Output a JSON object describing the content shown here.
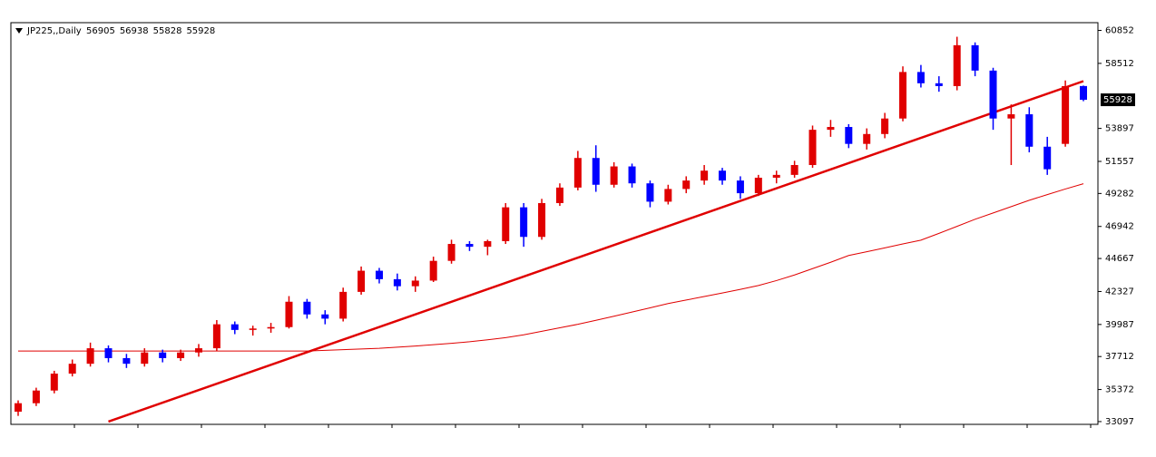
{
  "chart_data": {
    "type": "candlestick",
    "symbol": "JP225,,Daily",
    "bull_color": "#e00000",
    "bear_color": "#0000ff",
    "ylim": [
      32900,
      61400
    ],
    "yticks": [
      60852,
      58512,
      53897,
      51557,
      49282,
      46942,
      44667,
      42327,
      39987,
      37712,
      35372,
      33097
    ],
    "candles": [
      [
        33800,
        34600,
        33500,
        34400
      ],
      [
        34400,
        35500,
        34200,
        35300
      ],
      [
        35300,
        36700,
        35100,
        36500
      ],
      [
        36500,
        37500,
        36300,
        37200
      ],
      [
        37200,
        38700,
        37000,
        38300
      ],
      [
        38300,
        38500,
        37300,
        37600
      ],
      [
        37600,
        37900,
        36900,
        37200
      ],
      [
        37200,
        38300,
        37000,
        38000
      ],
      [
        38000,
        38200,
        37300,
        37600
      ],
      [
        37600,
        38200,
        37400,
        38000
      ],
      [
        38000,
        38600,
        37700,
        38300
      ],
      [
        38300,
        40300,
        38100,
        40000
      ],
      [
        40000,
        40200,
        39300,
        39600
      ],
      [
        39600,
        39900,
        39200,
        39700
      ],
      [
        39700,
        40100,
        39400,
        39800
      ],
      [
        39800,
        42000,
        39700,
        41600
      ],
      [
        41600,
        41800,
        40400,
        40700
      ],
      [
        40700,
        41000,
        40000,
        40400
      ],
      [
        40400,
        42600,
        40200,
        42300
      ],
      [
        42300,
        44100,
        42100,
        43800
      ],
      [
        43800,
        44000,
        42900,
        43200
      ],
      [
        43200,
        43600,
        42400,
        42700
      ],
      [
        42700,
        43400,
        42300,
        43100
      ],
      [
        43100,
        44800,
        43000,
        44500
      ],
      [
        44500,
        46000,
        44300,
        45700
      ],
      [
        45700,
        45900,
        45200,
        45500
      ],
      [
        45500,
        46000,
        44900,
        45900
      ],
      [
        45900,
        48600,
        45700,
        48300
      ],
      [
        48300,
        48600,
        45500,
        46200
      ],
      [
        46200,
        48900,
        46000,
        48600
      ],
      [
        48600,
        50000,
        48400,
        49700
      ],
      [
        49700,
        52300,
        49500,
        51800
      ],
      [
        51800,
        52700,
        49400,
        49900
      ],
      [
        49900,
        51500,
        49700,
        51200
      ],
      [
        51200,
        51400,
        49700,
        50000
      ],
      [
        50000,
        50200,
        48300,
        48700
      ],
      [
        48700,
        49900,
        48500,
        49600
      ],
      [
        49600,
        50500,
        49300,
        50200
      ],
      [
        50200,
        51300,
        49900,
        50900
      ],
      [
        50900,
        51100,
        49900,
        50200
      ],
      [
        50200,
        50500,
        48900,
        49300
      ],
      [
        49300,
        50600,
        49100,
        50400
      ],
      [
        50400,
        50900,
        50000,
        50600
      ],
      [
        50600,
        51600,
        50400,
        51300
      ],
      [
        51300,
        54100,
        51100,
        53800
      ],
      [
        53800,
        54500,
        53300,
        54000
      ],
      [
        54000,
        54200,
        52500,
        52800
      ],
      [
        52800,
        53900,
        52400,
        53500
      ],
      [
        53500,
        55000,
        53200,
        54600
      ],
      [
        54600,
        58300,
        54400,
        57900
      ],
      [
        57900,
        58400,
        56800,
        57100
      ],
      [
        57100,
        57600,
        56500,
        56900
      ],
      [
        56900,
        60400,
        56600,
        59800
      ],
      [
        59800,
        60000,
        57600,
        58000
      ],
      [
        58000,
        58200,
        53800,
        54600
      ],
      [
        54600,
        55600,
        51300,
        54900
      ],
      [
        54900,
        55400,
        52200,
        52600
      ],
      [
        52600,
        53300,
        50600,
        51000
      ],
      [
        52800,
        57300,
        52600,
        56900
      ],
      [
        56905,
        56938,
        55828,
        55928
      ]
    ],
    "ma": {
      "color": "#e00000",
      "values": [
        38100,
        38100,
        38100,
        38100,
        38100,
        38100,
        38100,
        38100,
        38100,
        38100,
        38100,
        38100,
        38100,
        38100,
        38100,
        38100,
        38100,
        38150,
        38200,
        38250,
        38300,
        38380,
        38460,
        38550,
        38650,
        38760,
        38900,
        39050,
        39250,
        39500,
        39750,
        40000,
        40280,
        40570,
        40870,
        41170,
        41470,
        41720,
        41970,
        42220,
        42480,
        42750,
        43100,
        43500,
        43950,
        44400,
        44880,
        45150,
        45420,
        45700,
        45970,
        46450,
        46950,
        47450,
        47900,
        48350,
        48800,
        49200,
        49600,
        49970
      ]
    },
    "trendline": {
      "color": "#e00000",
      "points": [
        {
          "x": 5,
          "value": 33100
        },
        {
          "x": 59,
          "value": 57250
        }
      ]
    }
  }
}
